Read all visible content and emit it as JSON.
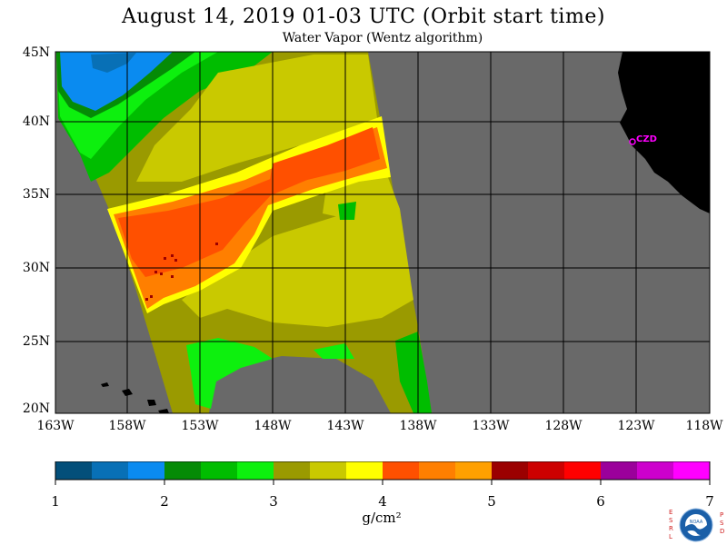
{
  "title": "August 14, 2019  01-03 UTC  (Orbit start time)",
  "subtitle": "Water Vapor (Wentz algorithm)",
  "lat_ticks": [
    "45N",
    "40N",
    "35N",
    "30N",
    "25N",
    "20N"
  ],
  "lon_ticks": [
    "163W",
    "158W",
    "153W",
    "148W",
    "143W",
    "138W",
    "133W",
    "128W",
    "123W",
    "118W"
  ],
  "colorbar": {
    "ticks": [
      "1",
      "2",
      "3",
      "4",
      "5",
      "6",
      "7"
    ],
    "unit": "g/cm²",
    "colors": [
      "#034f7a",
      "#0870b6",
      "#0a8bf0",
      "#058b06",
      "#00bd00",
      "#0df00e",
      "#9a9a00",
      "#c9c900",
      "#ffff00",
      "#ff5000",
      "#ff7f00",
      "#ffa000",
      "#9b0000",
      "#cd0000",
      "#ff0000",
      "#9b009b",
      "#cd00cd",
      "#ff00ff"
    ]
  },
  "station_label": "CZD",
  "logo": {
    "left_letters": "ESRL",
    "right_letters": "PSD",
    "center_text": "NOAA"
  },
  "colors": {
    "land": "#000000",
    "no_data": "#696969",
    "grid": "#000000"
  }
}
